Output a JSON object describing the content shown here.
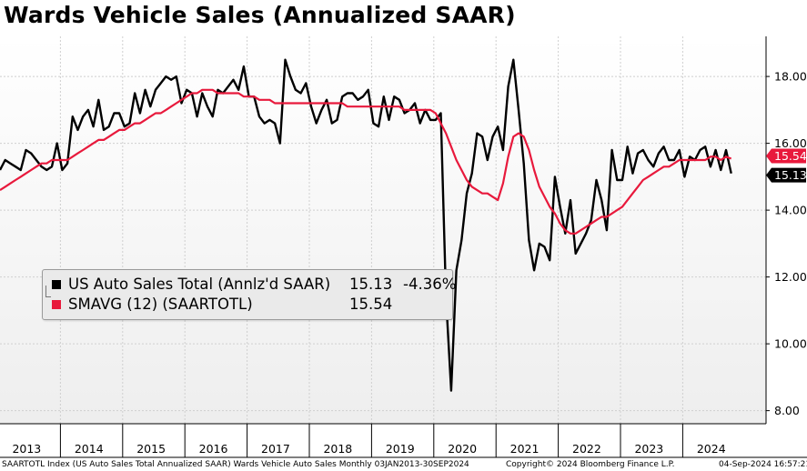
{
  "title": "Wards Vehicle Sales (Annualized SAAR)",
  "colors": {
    "sales": "#000000",
    "smavg": "#e8193c",
    "grid": "#cfcfcf",
    "last_value_box": "#000000",
    "smavg_box": "#e8193c"
  },
  "legend": {
    "series1_name": "US Auto Sales Total (Annlz'd SAAR)",
    "series1_value": "15.13",
    "series1_change": "-4.36%",
    "series2_name": "SMAVG (12) (SAARTOTL)",
    "series2_value": "15.54"
  },
  "last_labels": {
    "smavg": "15.54",
    "sales": "15.13"
  },
  "footer": {
    "left": "SAARTOTL Index (US Auto Sales Total Annualized SAAR) Wards Vehicle Auto Sales  Monthly 03JAN2013-30SEP2024",
    "center": "Copyright© 2024 Bloomberg Finance L.P.",
    "right": "04-Sep-2024 16:57:21"
  },
  "chart_data": {
    "type": "line",
    "title": "Wards Vehicle Sales (Annualized SAAR)",
    "frequency": "Monthly",
    "x_start": "2013-01",
    "x_end": "2024-08",
    "ylim": [
      7.5,
      19.2
    ],
    "y_ticks": [
      "8.00",
      "10.00",
      "12.00",
      "14.00",
      "16.00",
      "18.00"
    ],
    "x_tick_labels": [
      "2013",
      "2014",
      "2015",
      "2016",
      "2017",
      "2018",
      "2019",
      "2020",
      "2021",
      "2022",
      "2023",
      "2024"
    ],
    "grid": true,
    "y_axis_side": "right",
    "legend_position": "center-left",
    "series": [
      {
        "name": "US Auto Sales Total (Annlz'd SAAR)",
        "values": [
          15.2,
          15.5,
          15.4,
          15.3,
          15.2,
          15.8,
          15.7,
          15.5,
          15.3,
          15.2,
          15.3,
          16.0,
          15.2,
          15.4,
          16.8,
          16.4,
          16.8,
          17.0,
          16.5,
          17.3,
          16.4,
          16.5,
          16.9,
          16.9,
          16.5,
          16.6,
          17.5,
          16.9,
          17.6,
          17.1,
          17.6,
          17.8,
          18.0,
          17.9,
          18.0,
          17.2,
          17.6,
          17.5,
          16.8,
          17.5,
          17.1,
          16.8,
          17.6,
          17.5,
          17.7,
          17.9,
          17.6,
          18.3,
          17.4,
          17.4,
          16.8,
          16.6,
          16.7,
          16.6,
          16.0,
          18.5,
          18.0,
          17.6,
          17.5,
          17.8,
          17.1,
          16.6,
          17.0,
          17.3,
          16.6,
          16.7,
          17.4,
          17.5,
          17.5,
          17.3,
          17.4,
          17.6,
          16.6,
          16.5,
          17.4,
          16.7,
          17.4,
          17.3,
          16.9,
          17.0,
          17.2,
          16.6,
          17.0,
          16.7,
          16.7,
          16.9,
          11.4,
          8.6,
          12.2,
          13.1,
          14.5,
          15.1,
          16.3,
          16.2,
          15.5,
          16.2,
          16.5,
          15.8,
          17.7,
          18.5,
          17.0,
          15.4,
          13.1,
          12.2,
          13.0,
          12.9,
          12.5,
          15.0,
          14.1,
          13.3,
          14.3,
          12.7,
          13.0,
          13.3,
          13.7,
          14.9,
          14.3,
          13.4,
          15.8,
          14.9,
          14.9,
          15.9,
          15.1,
          15.7,
          15.8,
          15.5,
          15.3,
          15.7,
          15.9,
          15.5,
          15.5,
          15.8,
          15.0,
          15.6,
          15.5,
          15.8,
          15.9,
          15.3,
          15.8,
          15.2,
          15.8,
          15.1
        ]
      },
      {
        "name": "SMAVG (12) (SAARTOTL)",
        "values": [
          14.6,
          14.7,
          14.8,
          14.9,
          15.0,
          15.1,
          15.2,
          15.3,
          15.4,
          15.4,
          15.5,
          15.5,
          15.5,
          15.5,
          15.6,
          15.7,
          15.8,
          15.9,
          16.0,
          16.1,
          16.1,
          16.2,
          16.3,
          16.4,
          16.4,
          16.5,
          16.6,
          16.6,
          16.7,
          16.8,
          16.9,
          16.9,
          17.0,
          17.1,
          17.2,
          17.3,
          17.4,
          17.5,
          17.5,
          17.6,
          17.6,
          17.6,
          17.5,
          17.5,
          17.5,
          17.5,
          17.5,
          17.4,
          17.4,
          17.4,
          17.3,
          17.3,
          17.3,
          17.2,
          17.2,
          17.2,
          17.2,
          17.2,
          17.2,
          17.2,
          17.2,
          17.2,
          17.2,
          17.2,
          17.2,
          17.2,
          17.2,
          17.1,
          17.1,
          17.1,
          17.1,
          17.1,
          17.1,
          17.1,
          17.1,
          17.1,
          17.1,
          17.1,
          17.0,
          17.0,
          17.0,
          17.0,
          17.0,
          17.0,
          16.9,
          16.6,
          16.3,
          15.9,
          15.5,
          15.2,
          14.9,
          14.7,
          14.6,
          14.5,
          14.5,
          14.4,
          14.3,
          14.8,
          15.6,
          16.2,
          16.3,
          16.2,
          15.8,
          15.2,
          14.7,
          14.4,
          14.1,
          13.9,
          13.6,
          13.4,
          13.3,
          13.3,
          13.4,
          13.5,
          13.6,
          13.7,
          13.8,
          13.8,
          13.9,
          14.0,
          14.1,
          14.3,
          14.5,
          14.7,
          14.9,
          15.0,
          15.1,
          15.2,
          15.3,
          15.3,
          15.4,
          15.5,
          15.5,
          15.5,
          15.5,
          15.5,
          15.5,
          15.6,
          15.6,
          15.5,
          15.6,
          15.54
        ]
      }
    ]
  }
}
